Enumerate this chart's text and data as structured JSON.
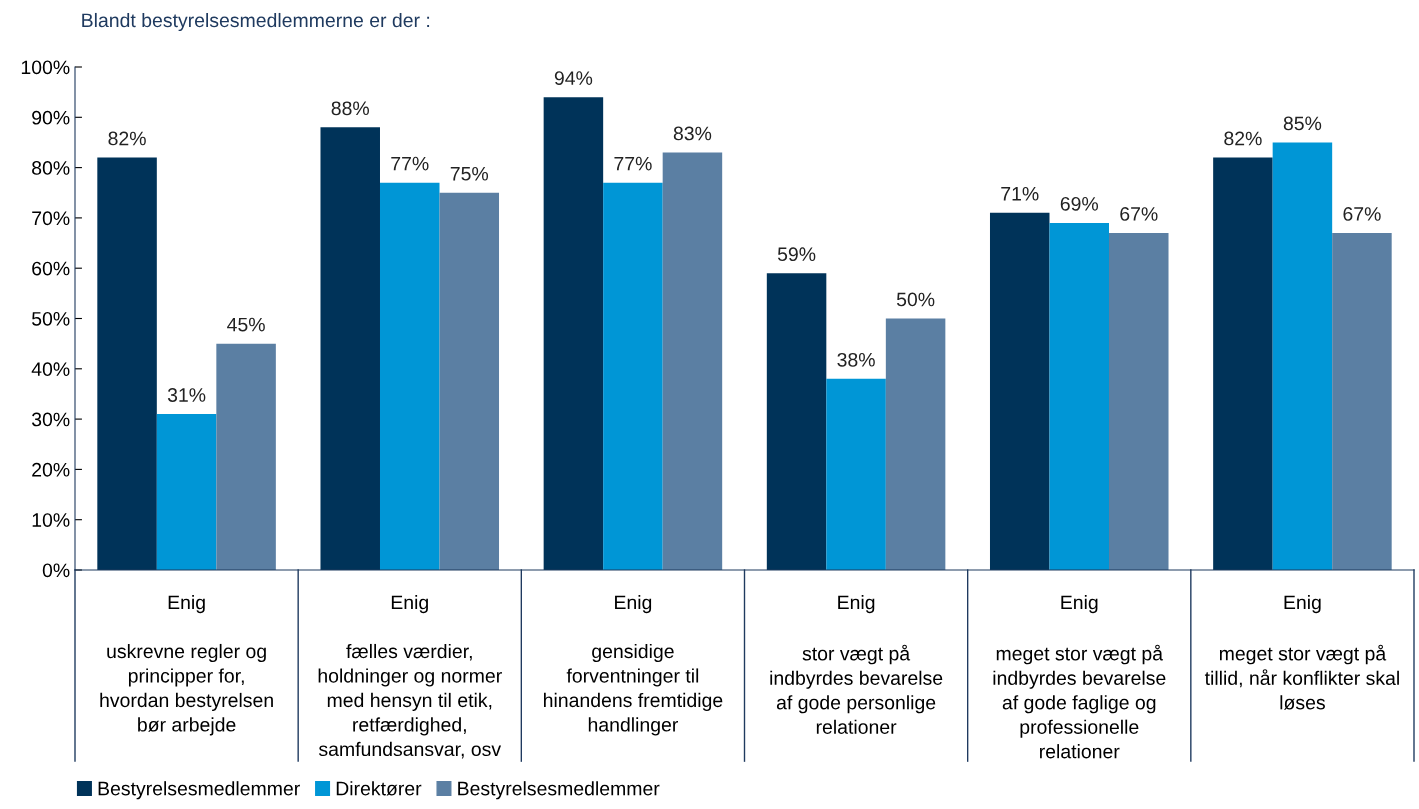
{
  "chart_data": {
    "type": "bar",
    "title": "Blandt bestyrelsesmedlemmerne er der :",
    "categories": [
      "Enig\n\nuskrevne regler og\nprincipper for,\nhvordan bestyrelsen\nbør arbejde",
      "Enig\n\nfælles værdier,\nholdninger og normer\nmed hensyn til etik,\nretfærdighed,\nsamfundsansvar, osv",
      "Enig\n\ngensidige\nforventninger til\nhinandens fremtidige\nhandlinger",
      "Enig\n\nstor vægt på\nindbyrdes bevarelse\naf gode personlige\nrelationer",
      "Enig\n\nmeget stor vægt på\nindbyrdes bevarelse\naf gode faglige og\nprofessionelle\nrelationer",
      "Enig\n\nmeget stor vægt på\ntillid, når konflikter skal\nløses"
    ],
    "series": [
      {
        "name": "Bestyrelsesmedlemmer",
        "color": "#003359",
        "values": [
          82,
          88,
          94,
          59,
          71,
          82
        ],
        "value_labels": [
          "82%",
          "88%",
          "94%",
          "59%",
          "71%",
          "82%"
        ]
      },
      {
        "name": "Direktører",
        "color": "#0096d6",
        "values": [
          31,
          77,
          77,
          38,
          69,
          85
        ],
        "value_labels": [
          "31%",
          "77%",
          "77%",
          "38%",
          "69%",
          "85%"
        ]
      },
      {
        "name": "Bestyrelsesmedlemmer",
        "color": "#5b7fa3",
        "values": [
          45,
          75,
          83,
          50,
          67,
          67
        ],
        "value_labels": [
          "45%",
          "75%",
          "83%",
          "50%",
          "67%",
          "67%"
        ]
      }
    ],
    "ylim": [
      0,
      100
    ],
    "yticks": [
      {
        "value": 0,
        "label": "0%"
      },
      {
        "value": 10,
        "label": "10%"
      },
      {
        "value": 20,
        "label": "20%"
      },
      {
        "value": 30,
        "label": "30%"
      },
      {
        "value": 40,
        "label": "40%"
      },
      {
        "value": 50,
        "label": "50%"
      },
      {
        "value": 60,
        "label": "60%"
      },
      {
        "value": 70,
        "label": "70%"
      },
      {
        "value": 80,
        "label": "80%"
      },
      {
        "value": 90,
        "label": "90%"
      },
      {
        "value": 100,
        "label": "100%"
      }
    ],
    "grid": false,
    "legend": "bottom left"
  }
}
